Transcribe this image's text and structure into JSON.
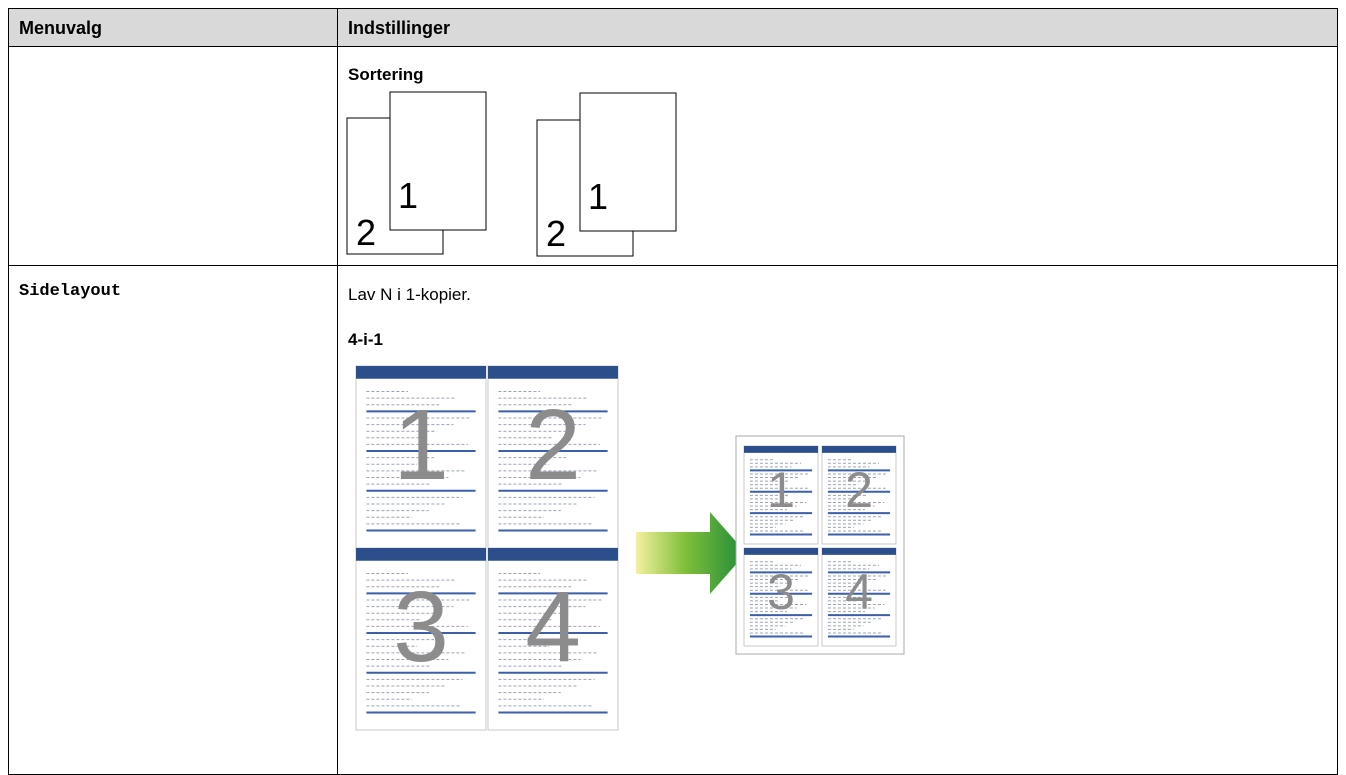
{
  "table": {
    "header": [
      "Menuvalg",
      "Indstillinger"
    ],
    "rows": [
      {
        "settings_heading": "Sortering",
        "illustration_labels": [
          "1",
          "2"
        ]
      },
      {
        "menu": "Sidelayout",
        "settings_text": "Lav N i 1-kopier.",
        "settings_heading": "4-i-1",
        "illustration_labels": [
          "1",
          "2",
          "3",
          "4"
        ]
      }
    ]
  }
}
